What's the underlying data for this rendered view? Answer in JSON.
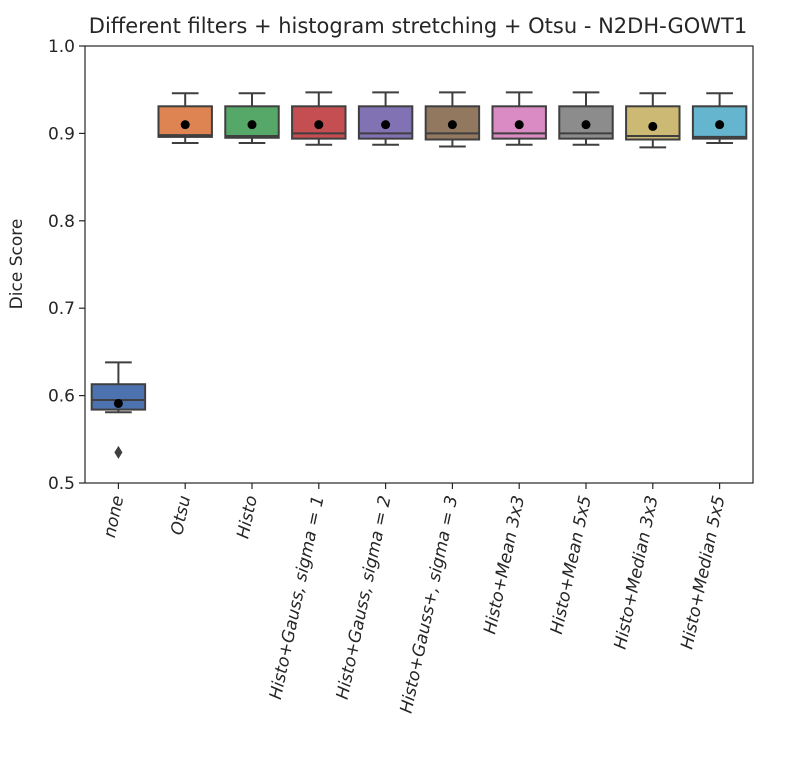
{
  "chart_data": {
    "type": "box",
    "title": "Different filters + histogram stretching + Otsu - N2DH-GOWT1",
    "xlabel": "",
    "ylabel": "Dice Score",
    "ylim": [
      0.5,
      1.0
    ],
    "yticks": [
      "0.5",
      "0.6",
      "0.7",
      "0.8",
      "0.9",
      "1.0"
    ],
    "grid": false,
    "legend": "none",
    "categories": [
      "none",
      "Otsu",
      "Histo",
      "Histo+Gauss, sigma = 1",
      "Histo+Gauss, sigma = 2",
      "Histo+Gauss+, sigma = 3",
      "Histo+Mean 3x3",
      "Histo+Mean 5x5",
      "Histo+Median 3x3",
      "Histo+Median 5x5"
    ],
    "boxes": [
      {
        "category": "none",
        "color": "#4c72b0",
        "whisker_low": 0.581,
        "q1": 0.584,
        "median": 0.595,
        "q3": 0.613,
        "whisker_high": 0.638,
        "mean": 0.591,
        "outliers": [
          0.535
        ]
      },
      {
        "category": "Otsu",
        "color": "#dd8452",
        "whisker_low": 0.889,
        "q1": 0.896,
        "median": 0.898,
        "q3": 0.931,
        "whisker_high": 0.946,
        "mean": 0.91,
        "outliers": []
      },
      {
        "category": "Histo",
        "color": "#55a868",
        "whisker_low": 0.889,
        "q1": 0.895,
        "median": 0.897,
        "q3": 0.931,
        "whisker_high": 0.946,
        "mean": 0.91,
        "outliers": []
      },
      {
        "category": "Histo+Gauss, sigma = 1",
        "color": "#c44e52",
        "whisker_low": 0.887,
        "q1": 0.894,
        "median": 0.9,
        "q3": 0.931,
        "whisker_high": 0.947,
        "mean": 0.91,
        "outliers": []
      },
      {
        "category": "Histo+Gauss, sigma = 2",
        "color": "#8172b3",
        "whisker_low": 0.887,
        "q1": 0.894,
        "median": 0.9,
        "q3": 0.931,
        "whisker_high": 0.947,
        "mean": 0.91,
        "outliers": []
      },
      {
        "category": "Histo+Gauss+, sigma = 3",
        "color": "#937860",
        "whisker_low": 0.885,
        "q1": 0.893,
        "median": 0.9,
        "q3": 0.931,
        "whisker_high": 0.947,
        "mean": 0.91,
        "outliers": []
      },
      {
        "category": "Histo+Mean 3x3",
        "color": "#da8bc3",
        "whisker_low": 0.887,
        "q1": 0.894,
        "median": 0.9,
        "q3": 0.931,
        "whisker_high": 0.947,
        "mean": 0.91,
        "outliers": []
      },
      {
        "category": "Histo+Mean 5x5",
        "color": "#8c8c8c",
        "whisker_low": 0.887,
        "q1": 0.894,
        "median": 0.9,
        "q3": 0.931,
        "whisker_high": 0.947,
        "mean": 0.91,
        "outliers": []
      },
      {
        "category": "Histo+Median 3x3",
        "color": "#ccb974",
        "whisker_low": 0.884,
        "q1": 0.893,
        "median": 0.897,
        "q3": 0.931,
        "whisker_high": 0.946,
        "mean": 0.908,
        "outliers": []
      },
      {
        "category": "Histo+Median 5x5",
        "color": "#64b5cd",
        "whisker_low": 0.889,
        "q1": 0.894,
        "median": 0.896,
        "q3": 0.931,
        "whisker_high": 0.946,
        "mean": 0.91,
        "outliers": []
      }
    ]
  }
}
